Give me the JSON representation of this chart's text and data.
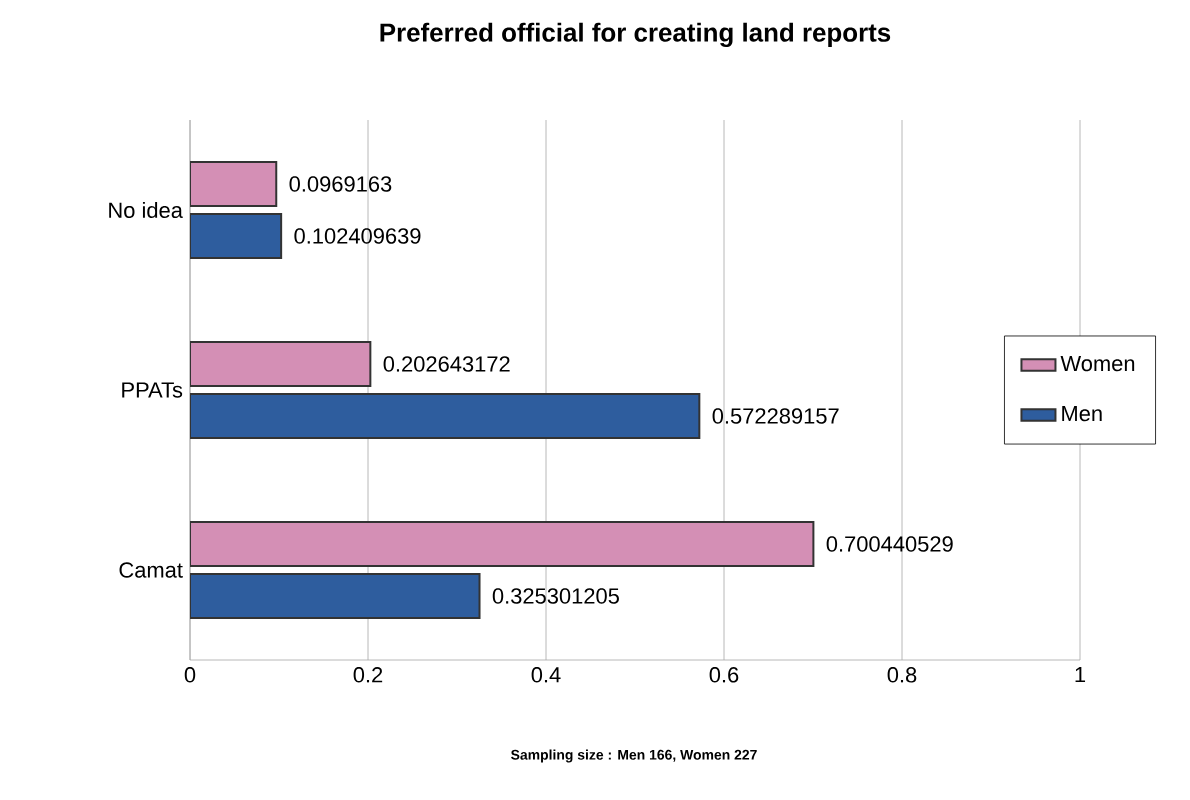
{
  "chart_data": {
    "type": "bar",
    "orientation": "horizontal",
    "title": "Preferred official for creating land reports",
    "categories": [
      "No idea",
      "PPATs",
      "Camat"
    ],
    "series": [
      {
        "name": "Women",
        "color": "#d48fb5",
        "values": [
          0.0969163,
          0.202643172,
          0.700440529
        ]
      },
      {
        "name": "Men",
        "color": "#2e5d9e",
        "values": [
          0.102409639,
          0.572289157,
          0.325301205
        ]
      }
    ],
    "xlim": [
      0,
      1
    ],
    "xticks": [
      0,
      0.2,
      0.4,
      0.6,
      0.8,
      1
    ],
    "grid": "x",
    "legend": "right",
    "data_labels": true,
    "annotations": [
      "Sampling size : Men 166, Women 227"
    ]
  }
}
